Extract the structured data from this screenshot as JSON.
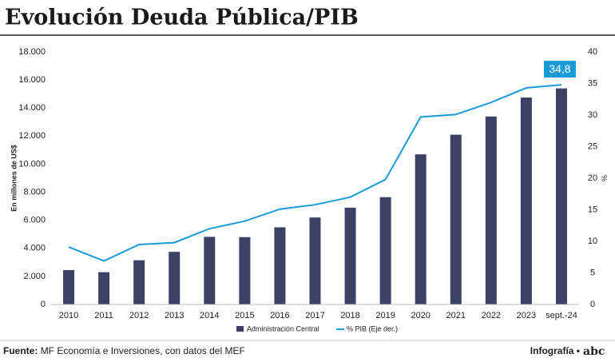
{
  "chart_data": {
    "type": "bar_line",
    "title": "Evolución Deuda Pública/PIB",
    "y_label": "En millones de US$",
    "y2_label": "%",
    "categories": [
      "2010",
      "2011",
      "2012",
      "2013",
      "2014",
      "2015",
      "2016",
      "2017",
      "2018",
      "2019",
      "2020",
      "2021",
      "2022",
      "2023",
      "sept.-24"
    ],
    "series": [
      {
        "name": "Administración Central",
        "type": "bar",
        "color": "#3b4266",
        "values": [
          2450,
          2300,
          3150,
          3750,
          4820,
          4800,
          5500,
          6200,
          6900,
          7650,
          10700,
          12100,
          13400,
          14750,
          15400
        ]
      },
      {
        "name": "% PIB (Eje der.)",
        "type": "line",
        "axis": "y2",
        "color": "#1a9bd7",
        "values": [
          9.1,
          6.9,
          9.5,
          9.8,
          12,
          13.2,
          15.1,
          15.8,
          17,
          19.8,
          29.7,
          30.1,
          32,
          34.3,
          34.8
        ],
        "value_labels": [
          null,
          null,
          null,
          null,
          null,
          null,
          null,
          null,
          null,
          null,
          null,
          null,
          null,
          null,
          "34,8"
        ]
      }
    ],
    "ylim": [
      0,
      18000
    ],
    "yticks": [
      0,
      {
        "value": 2000,
        "label": "2.000"
      },
      {
        "value": 4000,
        "label": "4.000"
      },
      {
        "value": 6000,
        "label": "6.000"
      },
      {
        "value": 8000,
        "label": "8.000"
      },
      {
        "value": 10000,
        "label": "10.000"
      },
      {
        "value": 12000,
        "label": "12.000"
      },
      {
        "value": 14000,
        "label": "14.000"
      },
      {
        "value": 16000,
        "label": "16.000"
      },
      {
        "value": 18000,
        "label": "18.000"
      }
    ],
    "y2lim": [
      0,
      40
    ],
    "y2ticks": [
      0,
      5,
      10,
      15,
      20,
      25,
      30,
      35,
      40
    ],
    "grid": false
  },
  "footer": {
    "source_label": "Fuente:",
    "source": "MF Economía e Inversiones, con datos del MEF",
    "credit": "Infografía •",
    "logo": "abc"
  }
}
